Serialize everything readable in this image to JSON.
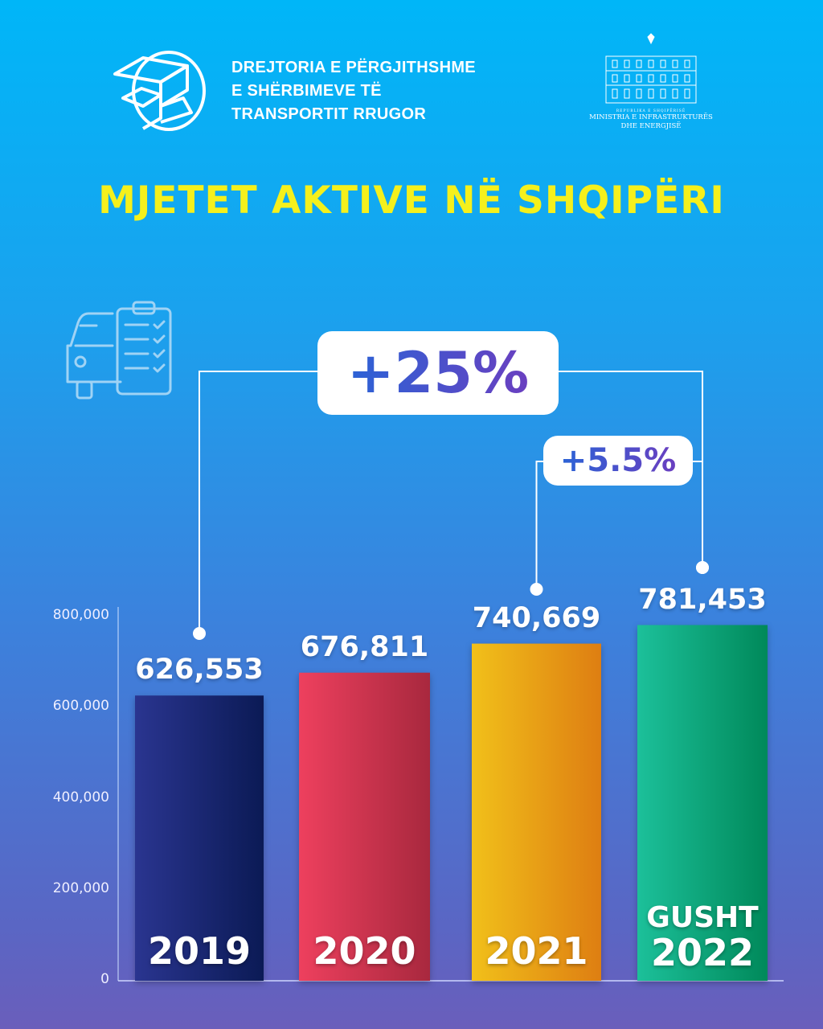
{
  "header": {
    "org_lines": [
      "DREJTORIA E PËRGJITHSHME",
      "E SHËRBIMEVE TË",
      "TRANSPORTIT RRUGOR"
    ],
    "ministry_small": "REPUBLIKA E SHQIPËRISË",
    "ministry_lines": [
      "MINISTRIA E INFRASTRUKTURËS",
      "DHE ENERGJISË"
    ]
  },
  "chart_data": {
    "type": "bar",
    "title": "MJETET AKTIVE NË SHQIPËRI",
    "categories": [
      "2019",
      "2020",
      "2021",
      "GUSHT 2022"
    ],
    "category_lines": [
      [
        "2019"
      ],
      [
        "2020"
      ],
      [
        "2021"
      ],
      [
        "GUSHT",
        "2022"
      ]
    ],
    "values": [
      626553,
      676811,
      740669,
      781453
    ],
    "value_labels": [
      "626,553",
      "676,811",
      "740,669",
      "781,453"
    ],
    "colors": [
      [
        "#2a3590",
        "#0b1a55"
      ],
      [
        "#ee405e",
        "#a8283e"
      ],
      [
        "#f1c01a",
        "#de7e12"
      ],
      [
        "#1cc09a",
        "#00895a"
      ]
    ],
    "ylim": [
      0,
      800000
    ],
    "yticks": [
      0,
      200000,
      400000,
      600000,
      800000
    ],
    "ytick_labels": [
      "0",
      "200,000",
      "400,000",
      "600,000",
      "800,000"
    ],
    "grid": false,
    "annotations": [
      {
        "label": "+25%",
        "from": "2019",
        "to": "GUSHT 2022"
      },
      {
        "label": "+5.5%",
        "from": "2021",
        "to": "GUSHT 2022"
      }
    ]
  },
  "icons": {
    "logo": "boxes-globe-logo",
    "ministry": "ministry-building-emblem",
    "decor": "truck-checklist-icon"
  }
}
